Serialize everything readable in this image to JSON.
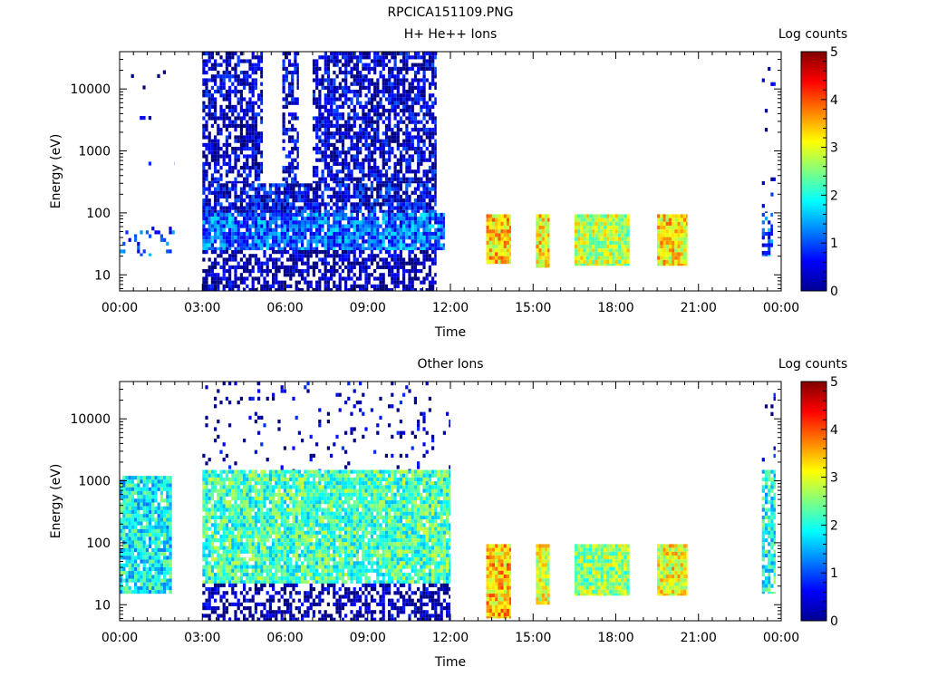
{
  "figure_title": "RPCICA151109.PNG",
  "chart_data": [
    {
      "type": "heatmap",
      "title": "H+ He++ Ions",
      "xlabel": "Time",
      "ylabel": "Energy (eV)",
      "x_ticks": [
        "00:00",
        "03:00",
        "06:00",
        "09:00",
        "12:00",
        "15:00",
        "18:00",
        "21:00",
        "00:00"
      ],
      "x_range_hours": [
        0,
        24
      ],
      "y_scale": "log",
      "y_ticks": [
        "10",
        "100",
        "1000",
        "10000"
      ],
      "y_range": [
        5.5,
        40000
      ],
      "colorbar": {
        "label": "Log counts",
        "range": [
          0,
          5
        ],
        "ticks": [
          "0",
          "1",
          "2",
          "3",
          "4",
          "5"
        ]
      },
      "regions": [
        {
          "t0": 0.0,
          "t1": 2.0,
          "e0": 20,
          "e1": 60,
          "level": 0.9,
          "density": 0.22
        },
        {
          "t0": 0.1,
          "t1": 2.0,
          "e0": 60,
          "e1": 20000,
          "level": 0.2,
          "density": 0.012
        },
        {
          "t0": 3.0,
          "t1": 5.2,
          "e0": 300,
          "e1": 40000,
          "level": 0.3,
          "density": 0.65
        },
        {
          "t0": 5.9,
          "t1": 6.5,
          "e0": 300,
          "e1": 40000,
          "level": 0.3,
          "density": 0.6
        },
        {
          "t0": 7.0,
          "t1": 11.5,
          "e0": 300,
          "e1": 40000,
          "level": 0.35,
          "density": 0.7
        },
        {
          "t0": 3.0,
          "t1": 11.5,
          "e0": 100,
          "e1": 300,
          "level": 0.5,
          "density": 0.8
        },
        {
          "t0": 3.0,
          "t1": 11.8,
          "e0": 25,
          "e1": 100,
          "level": 1.1,
          "density": 0.9
        },
        {
          "t0": 3.0,
          "t1": 11.5,
          "e0": 5.5,
          "e1": 25,
          "level": 0.15,
          "density": 0.65
        },
        {
          "t0": 13.3,
          "t1": 14.2,
          "e0": 15,
          "e1": 95,
          "level": 3.3,
          "density": 1.0
        },
        {
          "t0": 15.1,
          "t1": 15.6,
          "e0": 13,
          "e1": 95,
          "level": 3.2,
          "density": 1.0
        },
        {
          "t0": 16.5,
          "t1": 18.5,
          "e0": 14,
          "e1": 95,
          "level": 2.8,
          "density": 1.0
        },
        {
          "t0": 19.5,
          "t1": 20.6,
          "e0": 14,
          "e1": 95,
          "level": 3.2,
          "density": 1.0
        },
        {
          "t0": 23.3,
          "t1": 23.7,
          "e0": 20,
          "e1": 100,
          "level": 1.0,
          "density": 0.55
        },
        {
          "t0": 23.3,
          "t1": 23.8,
          "e0": 100,
          "e1": 30000,
          "level": 0.3,
          "density": 0.06
        }
      ]
    },
    {
      "type": "heatmap",
      "title": "Other Ions",
      "xlabel": "Time",
      "ylabel": "Energy (eV)",
      "x_ticks": [
        "00:00",
        "03:00",
        "06:00",
        "09:00",
        "12:00",
        "15:00",
        "18:00",
        "21:00",
        "00:00"
      ],
      "x_range_hours": [
        0,
        24
      ],
      "y_scale": "log",
      "y_ticks": [
        "10",
        "100",
        "1000",
        "10000"
      ],
      "y_range": [
        5.5,
        40000
      ],
      "colorbar": {
        "label": "Log counts",
        "range": [
          0,
          5
        ],
        "ticks": [
          "0",
          "1",
          "2",
          "3",
          "4",
          "5"
        ]
      },
      "regions": [
        {
          "t0": 0.0,
          "t1": 1.9,
          "e0": 15,
          "e1": 1200,
          "level": 1.9,
          "density": 0.9
        },
        {
          "t0": 3.0,
          "t1": 12.0,
          "e0": 22,
          "e1": 1500,
          "level": 2.2,
          "density": 0.92
        },
        {
          "t0": 3.0,
          "t1": 12.0,
          "e0": 1500,
          "e1": 40000,
          "level": 0.2,
          "density": 0.07
        },
        {
          "t0": 3.0,
          "t1": 12.0,
          "e0": 5.5,
          "e1": 22,
          "level": 0.15,
          "density": 0.55
        },
        {
          "t0": 13.3,
          "t1": 14.2,
          "e0": 6,
          "e1": 95,
          "level": 3.4,
          "density": 1.0
        },
        {
          "t0": 15.1,
          "t1": 15.6,
          "e0": 10,
          "e1": 95,
          "level": 3.0,
          "density": 1.0
        },
        {
          "t0": 16.5,
          "t1": 18.5,
          "e0": 14,
          "e1": 95,
          "level": 2.6,
          "density": 1.0
        },
        {
          "t0": 19.5,
          "t1": 20.6,
          "e0": 14,
          "e1": 95,
          "level": 3.1,
          "density": 1.0
        },
        {
          "t0": 23.3,
          "t1": 23.8,
          "e0": 15,
          "e1": 1500,
          "level": 2.0,
          "density": 0.8
        },
        {
          "t0": 23.3,
          "t1": 23.8,
          "e0": 1500,
          "e1": 30000,
          "level": 0.3,
          "density": 0.1
        }
      ]
    }
  ]
}
